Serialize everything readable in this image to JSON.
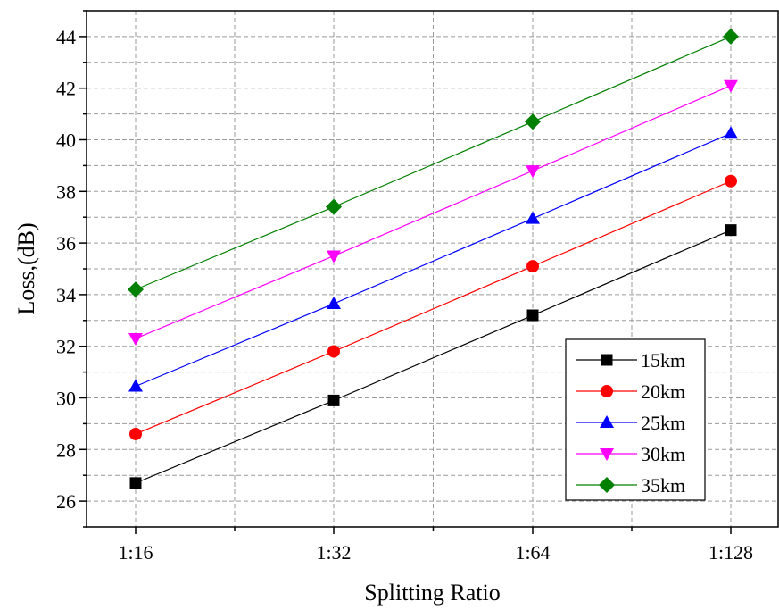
{
  "chart_data": {
    "type": "line",
    "title": "",
    "xlabel": "Splitting Ratio",
    "ylabel": "Loss,(dB)",
    "categories": [
      "1:16",
      "1:32",
      "1:64",
      "1:128"
    ],
    "ylim": [
      25,
      45
    ],
    "yticks": [
      26,
      28,
      30,
      32,
      34,
      36,
      38,
      40,
      42,
      44
    ],
    "grid": true,
    "legend_position": "bottom-right",
    "series": [
      {
        "name": "15km",
        "color": "#000000",
        "marker": "square",
        "values": [
          26.7,
          29.9,
          33.2,
          36.5
        ]
      },
      {
        "name": "20km",
        "color": "#ff0000",
        "marker": "circle",
        "values": [
          28.6,
          31.8,
          35.1,
          38.4
        ]
      },
      {
        "name": "25km",
        "color": "#0000ff",
        "marker": "triangle-up",
        "values": [
          30.45,
          33.65,
          36.95,
          40.25
        ]
      },
      {
        "name": "30km",
        "color": "#ff00ff",
        "marker": "triangle-down",
        "values": [
          32.3,
          35.5,
          38.8,
          42.1
        ]
      },
      {
        "name": "35km",
        "color": "#008000",
        "marker": "diamond",
        "values": [
          34.2,
          37.4,
          40.7,
          44.0
        ]
      }
    ]
  }
}
